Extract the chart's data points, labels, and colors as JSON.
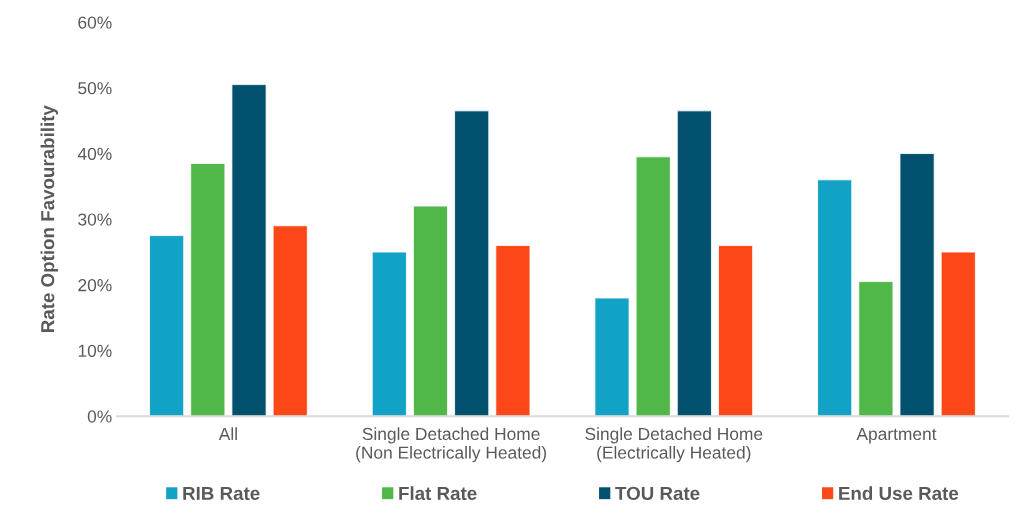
{
  "chart_data": {
    "type": "bar",
    "ylabel": "Rate Option Favourability",
    "categories": [
      "All",
      "Single Detached Home\n(Non Electrically Heated)",
      "Single Detached Home\n(Electrically Heated)",
      "Apartment"
    ],
    "series": [
      {
        "name": "RIB Rate",
        "color": "#12a2c6",
        "values": [
          27.5,
          25,
          18,
          36
        ]
      },
      {
        "name": "Flat Rate",
        "color": "#52b749",
        "values": [
          38.5,
          32,
          39.5,
          20.5
        ]
      },
      {
        "name": "TOU Rate",
        "color": "#00506e",
        "values": [
          50.5,
          46.5,
          46.5,
          40
        ]
      },
      {
        "name": "End Use Rate",
        "color": "#fc4719",
        "values": [
          29,
          26,
          26,
          25
        ]
      }
    ],
    "ylim": [
      0,
      60
    ],
    "yticks": [
      {
        "value": 0,
        "label": "0%"
      },
      {
        "value": 10,
        "label": "10%"
      },
      {
        "value": 20,
        "label": "20%"
      },
      {
        "value": 30,
        "label": "30%"
      },
      {
        "value": 40,
        "label": "40%"
      },
      {
        "value": 50,
        "label": "50%"
      },
      {
        "value": 60,
        "label": "60%"
      }
    ],
    "grid": false,
    "legend": "bottom"
  }
}
